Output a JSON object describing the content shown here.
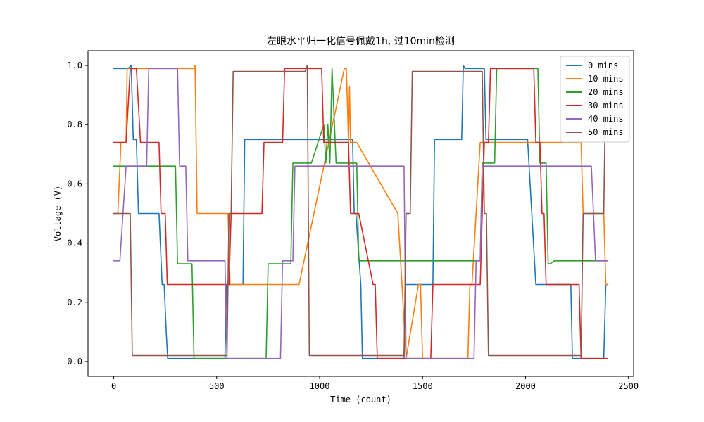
{
  "chart_data": {
    "type": "line",
    "title": "左眼水平归一化信号佩戴1h, 过10min检测",
    "xlabel": "Time (count)",
    "ylabel": "Voltage (V)",
    "xlim": [
      -125,
      2525
    ],
    "ylim": [
      -0.05,
      1.05
    ],
    "xticks": [
      0,
      500,
      1000,
      1500,
      2000,
      2500
    ],
    "yticks": [
      0.0,
      0.2,
      0.4,
      0.6,
      0.8,
      1.0
    ],
    "xtick_labels": [
      "0",
      "500",
      "1000",
      "1500",
      "2000",
      "2500"
    ],
    "ytick_labels": [
      "0.0",
      "0.2",
      "0.4",
      "0.6",
      "0.8",
      "1.0"
    ],
    "grid": false,
    "legend_position": "top-right",
    "series": [
      {
        "name": "0 mins",
        "color": "#1f77b4",
        "x": [
          0,
          70,
          85,
          95,
          110,
          120,
          220,
          235,
          245,
          255,
          262,
          270,
          540,
          548,
          556,
          628,
          636,
          644,
          1160,
          1168,
          1176,
          1200,
          1208,
          1216,
          1410,
          1418,
          1426,
          1550,
          1558,
          1566,
          1690,
          1698,
          1706,
          1800,
          1808,
          1816,
          1990,
          2010,
          2050,
          2060,
          2070,
          2220,
          2228,
          2236,
          2380,
          2390,
          2400
        ],
        "y": [
          0.99,
          0.99,
          1.0,
          0.75,
          0.75,
          0.5,
          0.5,
          0.26,
          0.26,
          0.1,
          0.01,
          0.01,
          0.01,
          0.26,
          0.26,
          0.26,
          0.75,
          0.75,
          0.75,
          0.5,
          0.5,
          0.26,
          0.01,
          0.01,
          0.01,
          0.26,
          0.26,
          0.26,
          0.75,
          0.75,
          0.75,
          1.0,
          0.99,
          0.99,
          0.75,
          0.75,
          0.75,
          0.75,
          0.26,
          0.26,
          0.26,
          0.26,
          0.01,
          0.01,
          0.01,
          0.26,
          0.26
        ]
      },
      {
        "name": "10 mins",
        "color": "#ff7f0e",
        "x": [
          0,
          10,
          20,
          35,
          45,
          60,
          65,
          75,
          390,
          395,
          405,
          550,
          555,
          565,
          580,
          880,
          890,
          900,
          1120,
          1130,
          1140,
          1145,
          1150,
          1160,
          1170,
          1180,
          1380,
          1400,
          1420,
          1480,
          1490,
          1500,
          1720,
          1730,
          1740,
          1780,
          1790,
          1800,
          2270,
          2280,
          2300,
          2310,
          2320,
          2330,
          2340,
          2350,
          2360,
          2370,
          2380,
          2390,
          2400
        ],
        "y": [
          0.5,
          0.5,
          0.5,
          0.74,
          0.74,
          0.74,
          0.99,
          0.99,
          0.99,
          1.0,
          0.5,
          0.5,
          0.5,
          0.26,
          0.26,
          0.26,
          0.26,
          0.26,
          0.99,
          0.99,
          0.74,
          0.93,
          0.74,
          0.74,
          0.74,
          0.74,
          0.5,
          0.26,
          0.01,
          0.26,
          0.26,
          0.01,
          0.01,
          0.26,
          0.26,
          0.74,
          0.74,
          0.74,
          0.74,
          0.5,
          0.5,
          0.5,
          0.5,
          0.5,
          0.5,
          0.5,
          0.5,
          0.5,
          0.5,
          0.26,
          0.26
        ]
      },
      {
        "name": "20 mins",
        "color": "#2ca02c",
        "x": [
          0,
          10,
          300,
          310,
          320,
          330,
          380,
          390,
          400,
          720,
          740,
          750,
          780,
          790,
          860,
          870,
          880,
          940,
          950,
          960,
          1020,
          1030,
          1040,
          1050,
          1060,
          1080,
          1180,
          1190,
          1200,
          1780,
          1790,
          1800,
          1850,
          1860,
          1870,
          1880,
          1890,
          1900,
          2050,
          2060,
          2070,
          2100,
          2110,
          2120,
          2140,
          2150,
          2160,
          2400
        ],
        "y": [
          0.66,
          0.66,
          0.66,
          0.33,
          0.33,
          0.33,
          0.33,
          0.01,
          0.01,
          0.01,
          0.01,
          0.33,
          0.33,
          0.33,
          0.33,
          0.67,
          0.67,
          0.67,
          0.67,
          0.67,
          0.8,
          0.67,
          0.8,
          0.67,
          0.99,
          0.67,
          0.67,
          0.34,
          0.34,
          0.34,
          0.67,
          0.67,
          0.67,
          0.99,
          0.99,
          0.99,
          0.99,
          0.99,
          0.99,
          0.99,
          0.67,
          0.67,
          0.33,
          0.33,
          0.34,
          0.34,
          0.34,
          0.34
        ]
      },
      {
        "name": "30 mins",
        "color": "#d62728",
        "x": [
          0,
          10,
          50,
          60,
          80,
          90,
          100,
          110,
          130,
          140,
          150,
          160,
          220,
          230,
          240,
          250,
          260,
          270,
          280,
          540,
          550,
          560,
          570,
          580,
          590,
          600,
          720,
          730,
          740,
          750,
          760,
          820,
          830,
          840,
          850,
          860,
          870,
          880,
          1010,
          1020,
          1030,
          1040,
          1050,
          1060,
          1140,
          1150,
          1160,
          1170,
          1180,
          1190,
          1260,
          1270,
          1280,
          1290,
          1300,
          1390,
          1400,
          1410,
          1420,
          1430,
          1440,
          1450,
          1510,
          1520,
          1530,
          1540,
          1550,
          1560,
          1600,
          1610,
          1620,
          1630,
          1640,
          1650,
          1780,
          1790,
          1800,
          1810,
          1820,
          1830,
          1840,
          1850,
          1860,
          1870,
          1880,
          1890,
          1900,
          1910,
          1920,
          2010,
          2020,
          2030,
          2040,
          2050,
          2060,
          2070,
          2080,
          2090,
          2100,
          2110,
          2250,
          2260,
          2270,
          2280,
          2290,
          2300,
          2400
        ],
        "y": [
          0.74,
          0.74,
          0.74,
          0.74,
          0.99,
          0.99,
          0.99,
          0.99,
          0.74,
          0.74,
          0.74,
          0.74,
          0.74,
          0.5,
          0.5,
          0.5,
          0.26,
          0.26,
          0.26,
          0.26,
          0.26,
          0.26,
          0.5,
          0.5,
          0.5,
          0.5,
          0.5,
          0.74,
          0.74,
          0.74,
          0.74,
          0.74,
          0.99,
          0.99,
          0.99,
          0.99,
          0.99,
          0.99,
          0.99,
          0.74,
          0.74,
          0.74,
          0.74,
          0.74,
          0.74,
          0.5,
          0.5,
          0.5,
          0.5,
          0.5,
          0.26,
          0.26,
          0.01,
          0.01,
          0.01,
          0.01,
          0.01,
          0.01,
          0.01,
          0.01,
          0.01,
          0.01,
          0.01,
          0.01,
          0.01,
          0.01,
          0.26,
          0.26,
          0.26,
          0.26,
          0.26,
          0.26,
          0.26,
          0.26,
          0.26,
          0.5,
          0.74,
          0.74,
          0.74,
          0.99,
          0.99,
          0.99,
          0.99,
          0.99,
          0.99,
          0.99,
          0.99,
          0.99,
          0.99,
          0.99,
          0.99,
          0.99,
          0.99,
          0.74,
          0.74,
          0.74,
          0.5,
          0.5,
          0.26,
          0.26,
          0.26,
          0.26,
          0.01,
          0.01,
          0.01,
          0.01,
          0.01
        ]
      },
      {
        "name": "40 mins",
        "color": "#9467bd",
        "x": [
          0,
          10,
          20,
          30,
          60,
          70,
          100,
          110,
          150,
          160,
          170,
          180,
          190,
          200,
          300,
          310,
          320,
          330,
          340,
          350,
          360,
          370,
          530,
          540,
          550,
          560,
          570,
          580,
          800,
          810,
          820,
          830,
          840,
          850,
          860,
          870,
          880,
          890,
          900,
          1390,
          1400,
          1410,
          1420,
          1430,
          1440,
          1740,
          1750,
          1760,
          1770,
          1780,
          1790,
          1800,
          1810,
          1820,
          1830,
          2280,
          2290,
          2300,
          2310,
          2320,
          2330,
          2340,
          2400
        ],
        "y": [
          0.34,
          0.34,
          0.34,
          0.34,
          0.66,
          0.66,
          0.66,
          0.66,
          0.66,
          0.66,
          0.99,
          0.99,
          0.99,
          0.99,
          0.99,
          0.99,
          0.66,
          0.66,
          0.66,
          0.66,
          0.34,
          0.34,
          0.34,
          0.34,
          0.01,
          0.01,
          0.01,
          0.01,
          0.01,
          0.01,
          0.34,
          0.34,
          0.34,
          0.34,
          0.34,
          0.34,
          0.66,
          0.66,
          0.66,
          0.66,
          0.66,
          0.66,
          0.01,
          0.01,
          0.01,
          0.01,
          0.01,
          0.34,
          0.34,
          0.34,
          0.66,
          0.66,
          0.66,
          0.66,
          0.66,
          0.66,
          0.66,
          0.66,
          0.66,
          0.66,
          0.5,
          0.34,
          0.34
        ]
      },
      {
        "name": "50 mins",
        "color": "#8c564b",
        "x": [
          0,
          10,
          60,
          70,
          80,
          90,
          100,
          110,
          120,
          530,
          540,
          550,
          560,
          570,
          580,
          590,
          600,
          610,
          620,
          920,
          930,
          940,
          950,
          960,
          970,
          1400,
          1410,
          1420,
          1430,
          1440,
          1450,
          1460,
          1470,
          1480,
          1790,
          1800,
          1810,
          1820,
          1830,
          2240,
          2250,
          2260,
          2270,
          2280,
          2290,
          2300,
          2310,
          2320,
          2330,
          2340,
          2350,
          2360,
          2370,
          2380,
          2390,
          2400
        ],
        "y": [
          0.5,
          0.5,
          0.5,
          0.5,
          0.5,
          0.02,
          0.02,
          0.02,
          0.02,
          0.02,
          0.02,
          0.02,
          0.5,
          0.5,
          0.98,
          0.98,
          0.98,
          0.98,
          0.98,
          0.98,
          0.98,
          1.0,
          0.02,
          0.02,
          0.02,
          0.02,
          0.02,
          0.5,
          0.5,
          0.5,
          0.98,
          0.98,
          0.98,
          0.98,
          0.98,
          0.5,
          0.5,
          0.02,
          0.02,
          0.02,
          0.02,
          0.02,
          0.02,
          0.5,
          0.5,
          0.5,
          0.5,
          0.5,
          0.5,
          0.5,
          0.5,
          0.5,
          0.5,
          0.5,
          0.98,
          0.98
        ]
      }
    ]
  }
}
